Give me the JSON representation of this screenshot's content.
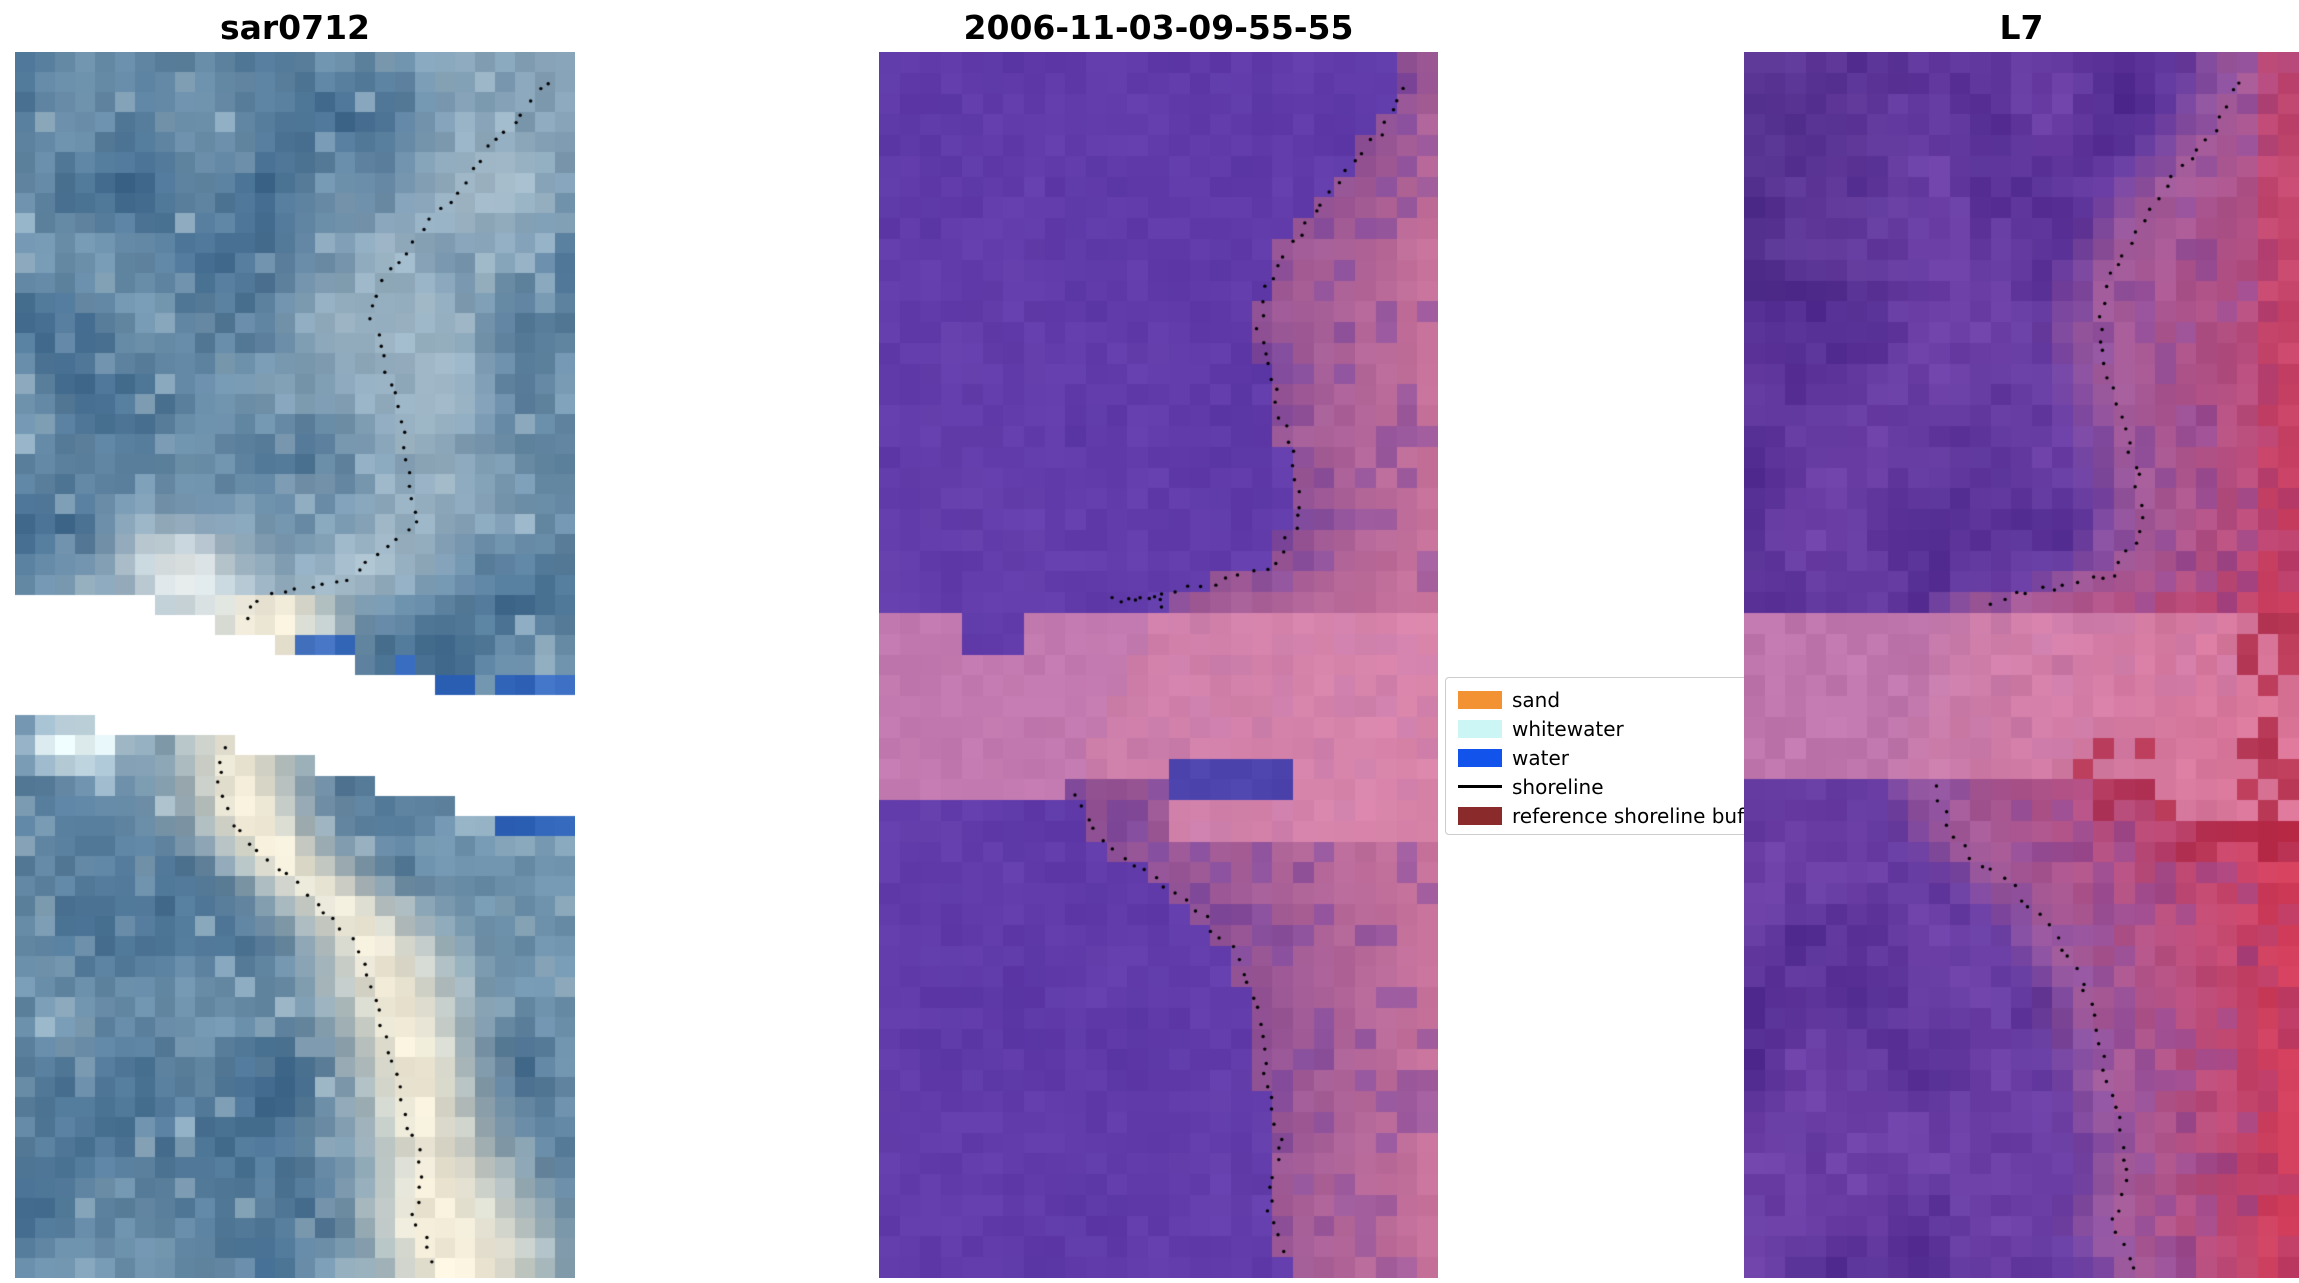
{
  "chart_data": {
    "type": "heatmap",
    "title": "",
    "description": "Three coastal satellite image subplots with detected shoreline points (black dots). Left: SAR composite 'sar0712' with a white no-data band across the middle. Center: classified optical image dated 2006-11-03-09-55-55 (purple water, pink sand, rose reference-shoreline buffer band). Right: Landsat 7 false-colour image. Legend overlaps the right panel and its last label is truncated.",
    "panels": [
      {
        "title": "sar0712",
        "kind": "sar-composite",
        "palette": {
          "water_dark": "#3a6489",
          "water_mid": "#6e92ac",
          "bright_blue": "#bed2dc",
          "cream": "#f2ebd7",
          "white_cyan": "#e8f6f8",
          "accent_blue": "#2b62c4",
          "nodata": "#ffffff"
        },
        "shoreline": [
          [
            0.95,
            0.024
          ],
          [
            0.91,
            0.048
          ],
          [
            0.844,
            0.078
          ],
          [
            0.765,
            0.127
          ],
          [
            0.66,
            0.181
          ],
          [
            0.639,
            0.217
          ],
          [
            0.665,
            0.259
          ],
          [
            0.686,
            0.301
          ],
          [
            0.707,
            0.343
          ],
          [
            0.718,
            0.386
          ],
          [
            0.646,
            0.41
          ],
          [
            0.58,
            0.434
          ],
          [
            0.488,
            0.44
          ],
          [
            0.422,
            0.449
          ],
          [
            0.364,
            0.59
          ],
          [
            0.383,
            0.627
          ],
          [
            0.462,
            0.663
          ],
          [
            0.541,
            0.693
          ],
          [
            0.607,
            0.729
          ],
          [
            0.646,
            0.771
          ],
          [
            0.665,
            0.813
          ],
          [
            0.691,
            0.855
          ],
          [
            0.726,
            0.91
          ],
          [
            0.712,
            0.952
          ],
          [
            0.752,
            0.988
          ]
        ]
      },
      {
        "title": "2006-11-03-09-55-55",
        "kind": "classified-optical",
        "palette": {
          "purple": "#5c37a6",
          "mauve": "#8a4d93",
          "pink": "#c8739b",
          "band": "#e08cb0",
          "navy": "#3c3cae"
        },
        "shoreline": [
          [
            0.939,
            0.028
          ],
          [
            0.907,
            0.06
          ],
          [
            0.807,
            0.114
          ],
          [
            0.706,
            0.175
          ],
          [
            0.68,
            0.223
          ],
          [
            0.706,
            0.277
          ],
          [
            0.743,
            0.331
          ],
          [
            0.754,
            0.38
          ],
          [
            0.701,
            0.422
          ],
          [
            0.542,
            0.44
          ],
          [
            0.415,
            0.447
          ],
          [
            0.516,
            0.449
          ],
          [
            0.352,
            0.602
          ],
          [
            0.384,
            0.635
          ],
          [
            0.476,
            0.669
          ],
          [
            0.574,
            0.702
          ],
          [
            0.643,
            0.741
          ],
          [
            0.68,
            0.789
          ],
          [
            0.69,
            0.837
          ],
          [
            0.722,
            0.892
          ],
          [
            0.696,
            0.94
          ],
          [
            0.733,
            0.984
          ]
        ]
      },
      {
        "title": "L7",
        "kind": "landsat7-false-colour",
        "palette": {
          "purple_dark": "#4f2a8e",
          "purple": "#6b3fa6",
          "mauve": "#a05c9d",
          "pink": "#cf6f96",
          "red": "#d23c58",
          "crimson": "#ae2440",
          "band": "#e08cb0"
        },
        "shoreline": [
          [
            0.891,
            0.024
          ],
          [
            0.851,
            0.06
          ],
          [
            0.731,
            0.127
          ],
          [
            0.66,
            0.181
          ],
          [
            0.638,
            0.229
          ],
          [
            0.67,
            0.283
          ],
          [
            0.705,
            0.337
          ],
          [
            0.718,
            0.386
          ],
          [
            0.665,
            0.428
          ],
          [
            0.505,
            0.44
          ],
          [
            0.439,
            0.449
          ],
          [
            0.346,
            0.608
          ],
          [
            0.386,
            0.645
          ],
          [
            0.479,
            0.681
          ],
          [
            0.559,
            0.717
          ],
          [
            0.612,
            0.759
          ],
          [
            0.638,
            0.807
          ],
          [
            0.67,
            0.861
          ],
          [
            0.691,
            0.916
          ],
          [
            0.665,
            0.958
          ],
          [
            0.705,
            0.992
          ]
        ]
      }
    ]
  },
  "legend": {
    "entries": [
      {
        "label": "sand",
        "color": "#f29232",
        "type": "patch"
      },
      {
        "label": "whitewater",
        "color": "#ccf6f6",
        "type": "patch"
      },
      {
        "label": "water",
        "color": "#1253ec",
        "type": "patch"
      },
      {
        "label": "shoreline",
        "color": "#000000",
        "type": "line"
      },
      {
        "label": "reference shoreline buffer",
        "color": "#8b2a2a",
        "type": "patch"
      }
    ]
  }
}
